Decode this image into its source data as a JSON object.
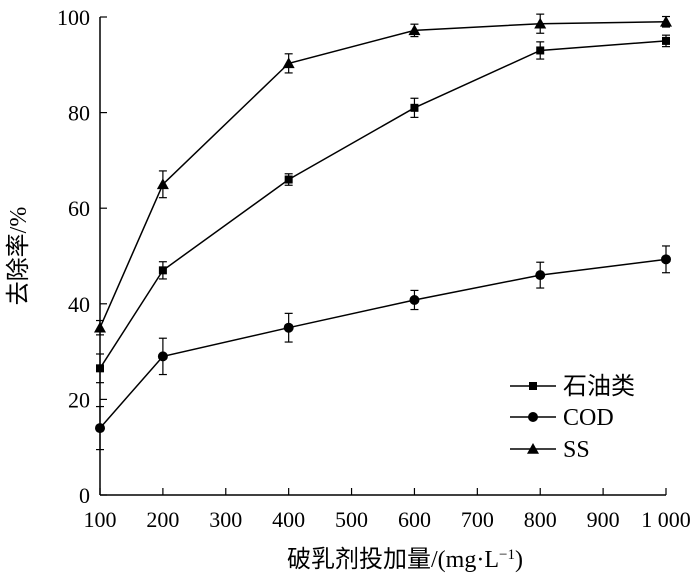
{
  "chart_data": {
    "type": "line",
    "xlabel": "破乳剂投加量/(mg·L",
    "xlabel_sup": "−1",
    "xlabel_close": ")",
    "ylabel": "去除率/%",
    "xlim": [
      100,
      1000
    ],
    "ylim": [
      0,
      100
    ],
    "x_ticks": [
      "100",
      "200",
      "300",
      "400",
      "500",
      "600",
      "700",
      "800",
      "900",
      "1 000"
    ],
    "x_tick_values": [
      100,
      200,
      300,
      400,
      500,
      600,
      700,
      800,
      900,
      1000
    ],
    "y_ticks": [
      "0",
      "20",
      "40",
      "60",
      "80",
      "100"
    ],
    "y_tick_values": [
      0,
      20,
      40,
      60,
      80,
      100
    ],
    "grid": false,
    "legend_position": "bottom-right",
    "series": [
      {
        "name": "石油类",
        "marker": "square",
        "x": [
          100,
          200,
          400,
          600,
          800,
          1000
        ],
        "y": [
          26.5,
          47,
          66,
          81,
          93,
          95
        ],
        "err": [
          3,
          1.8,
          1.2,
          2,
          1.8,
          1.2
        ]
      },
      {
        "name": "COD",
        "marker": "circle",
        "x": [
          100,
          200,
          400,
          600,
          800,
          1000
        ],
        "y": [
          14,
          29,
          35,
          40.8,
          46,
          49.3
        ],
        "err": [
          4.5,
          3.8,
          3,
          2,
          2.7,
          2.8
        ]
      },
      {
        "name": "SS",
        "marker": "triangle",
        "x": [
          100,
          200,
          400,
          600,
          800,
          1000
        ],
        "y": [
          35,
          65,
          90.3,
          97.2,
          98.6,
          99
        ],
        "err": [
          1.5,
          2.8,
          2,
          1.3,
          2,
          1.1
        ]
      }
    ]
  }
}
